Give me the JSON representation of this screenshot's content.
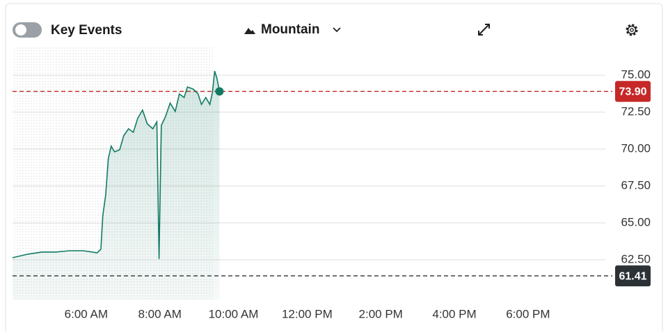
{
  "toolbar": {
    "toggle_label": "Key Events",
    "chart_style": "Mountain"
  },
  "chart_data": {
    "type": "mountain",
    "x": [
      4.0,
      4.42,
      4.79,
      5.17,
      5.55,
      5.92,
      6.3,
      6.4,
      6.45,
      6.53,
      6.6,
      6.68,
      6.77,
      6.91,
      7.02,
      7.15,
      7.28,
      7.4,
      7.53,
      7.66,
      7.81,
      7.92,
      7.98,
      8.04,
      8.15,
      8.28,
      8.42,
      8.53,
      8.66,
      8.75,
      8.91,
      9.04,
      9.13,
      9.25,
      9.36,
      9.43,
      9.49,
      9.55,
      9.62
    ],
    "series": [
      {
        "color": "#127a63",
        "values": [
          62.64,
          62.88,
          63.02,
          63.02,
          63.11,
          63.11,
          62.97,
          63.21,
          65.47,
          66.89,
          69.34,
          70.19,
          69.81,
          69.95,
          70.9,
          71.37,
          71.13,
          72.08,
          72.64,
          71.7,
          71.37,
          71.84,
          62.55,
          71.6,
          72.17,
          73.11,
          72.55,
          73.73,
          73.49,
          74.2,
          74.06,
          73.73,
          73.02,
          73.49,
          73.02,
          73.87,
          75.28,
          74.81,
          73.9
        ]
      }
    ],
    "xlim": [
      4,
      20.1
    ],
    "xticks": [
      {
        "value": 6,
        "label": "6:00 AM"
      },
      {
        "value": 8,
        "label": "8:00 AM"
      },
      {
        "value": 10,
        "label": "10:00 AM"
      },
      {
        "value": 12,
        "label": "12:00 PM"
      },
      {
        "value": 14,
        "label": "2:00 PM"
      },
      {
        "value": 16,
        "label": "4:00 PM"
      },
      {
        "value": 18,
        "label": "6:00 PM"
      }
    ],
    "ylim": [
      59.8,
      76.9
    ],
    "yticks": [
      {
        "value": 62.5,
        "label": "62.50"
      },
      {
        "value": 65,
        "label": "65.00"
      },
      {
        "value": 67.5,
        "label": "67.50"
      },
      {
        "value": 70,
        "label": "70.00"
      },
      {
        "value": 72.5,
        "label": "72.50"
      },
      {
        "value": 75,
        "label": "75.00"
      }
    ],
    "grid": true,
    "reference_lines": [
      {
        "value": 73.9,
        "label": "73.90",
        "color": "#c62828"
      },
      {
        "value": 61.41,
        "label": "61.41",
        "color": "#2b3135"
      }
    ],
    "premarket_end": 9.43
  }
}
